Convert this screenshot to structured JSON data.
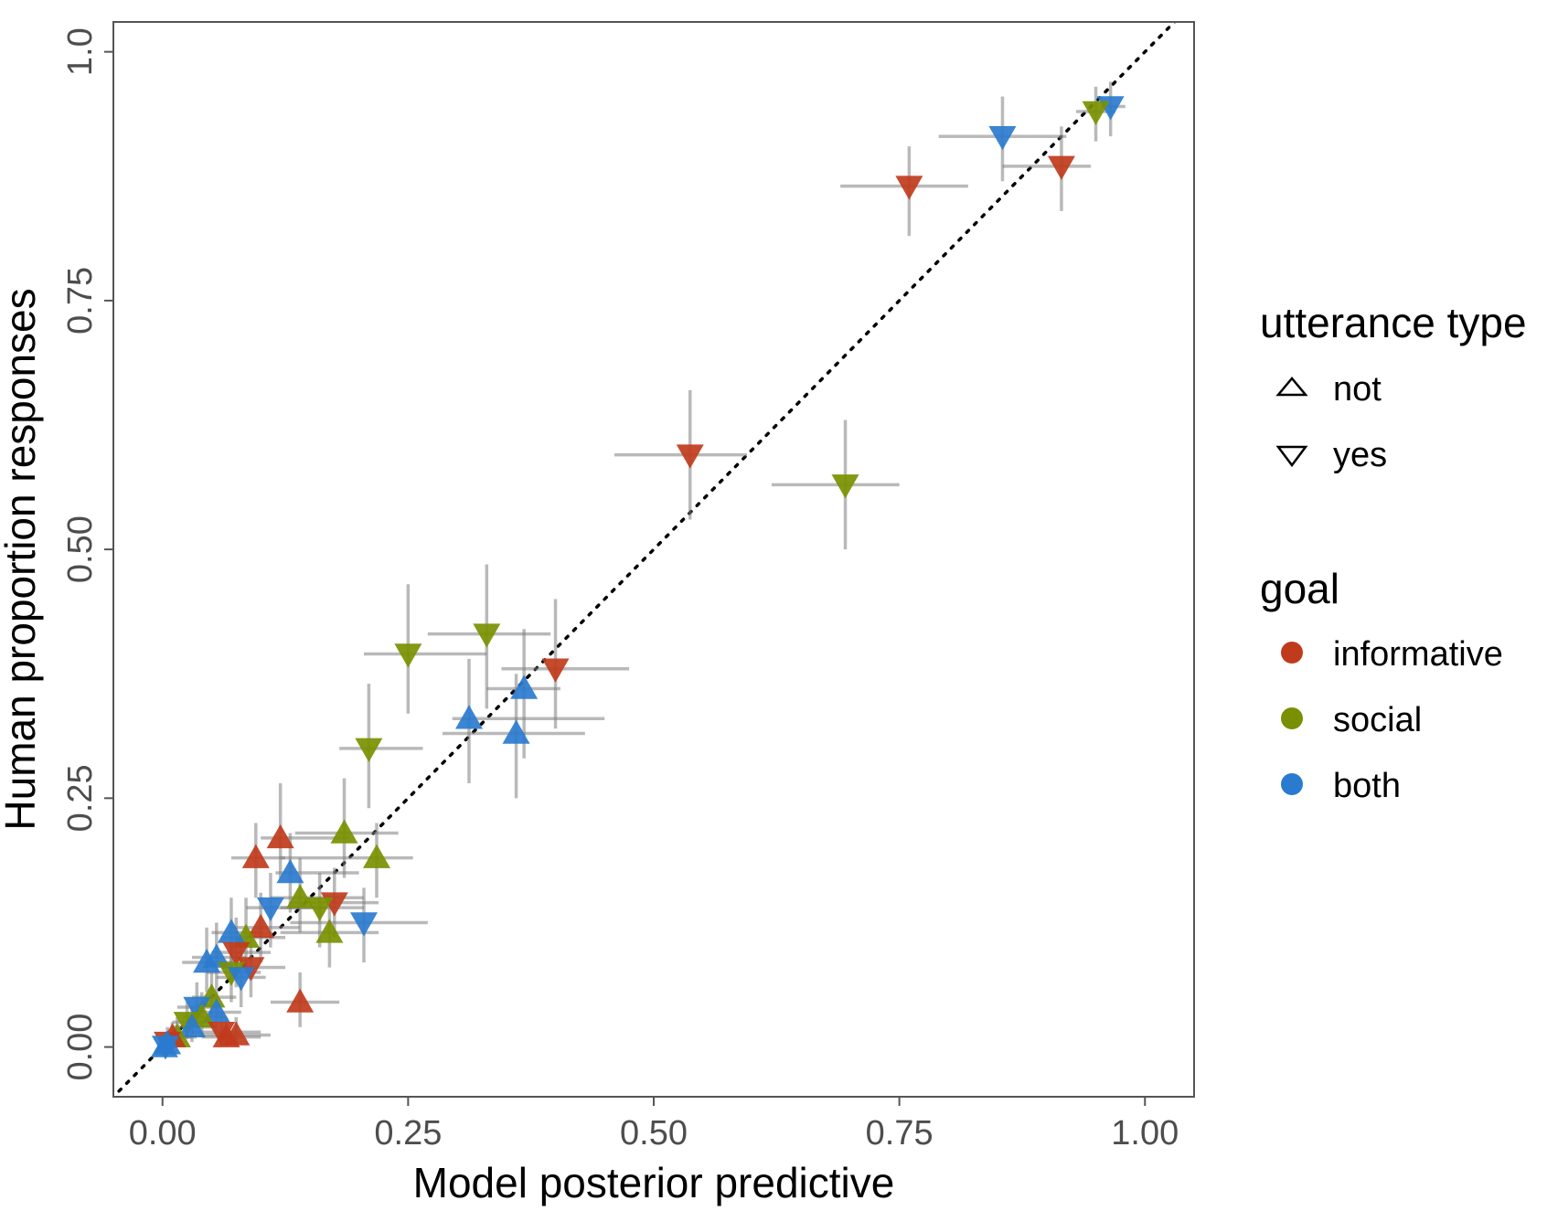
{
  "chart_data": {
    "type": "scatter",
    "title": "",
    "xlabel": "Model posterior predictive",
    "ylabel": "Human proportion responses",
    "xlim": [
      -0.05,
      1.05
    ],
    "ylim": [
      -0.05,
      1.03
    ],
    "xticks": [
      "0.00",
      "0.25",
      "0.50",
      "0.75",
      "1.00"
    ],
    "yticks": [
      "0.00",
      "0.25",
      "0.50",
      "0.75",
      "1.0"
    ],
    "grid": false,
    "reference_line": "y = x (dotted)",
    "legend_placement": "right",
    "colors": {
      "informative": "#c03b1c",
      "social": "#7a9000",
      "both": "#2a7bcf"
    },
    "legends": {
      "shape": {
        "title": "utterance type",
        "items": [
          {
            "label": "not",
            "shape": "triangle-up"
          },
          {
            "label": "yes",
            "shape": "triangle-down"
          }
        ]
      },
      "color": {
        "title": "goal",
        "items": [
          {
            "label": "informative",
            "key": "informative"
          },
          {
            "label": "social",
            "key": "social"
          },
          {
            "label": "both",
            "key": "both"
          }
        ]
      }
    },
    "points": [
      {
        "x": 0.965,
        "y": 0.945,
        "xerr": [
          0.955,
          0.98
        ],
        "yerr": [
          0.915,
          0.97
        ],
        "goal": "both",
        "utt": "yes"
      },
      {
        "x": 0.95,
        "y": 0.94,
        "xerr": [
          0.93,
          0.97
        ],
        "yerr": [
          0.91,
          0.965
        ],
        "goal": "social",
        "utt": "yes"
      },
      {
        "x": 0.855,
        "y": 0.915,
        "xerr": [
          0.79,
          0.92
        ],
        "yerr": [
          0.87,
          0.955
        ],
        "goal": "both",
        "utt": "yes"
      },
      {
        "x": 0.915,
        "y": 0.885,
        "xerr": [
          0.855,
          0.945
        ],
        "yerr": [
          0.84,
          0.925
        ],
        "goal": "informative",
        "utt": "yes"
      },
      {
        "x": 0.76,
        "y": 0.865,
        "xerr": [
          0.69,
          0.82
        ],
        "yerr": [
          0.815,
          0.905
        ],
        "goal": "informative",
        "utt": "yes"
      },
      {
        "x": 0.537,
        "y": 0.595,
        "xerr": [
          0.46,
          0.595
        ],
        "yerr": [
          0.53,
          0.66
        ],
        "goal": "informative",
        "utt": "yes"
      },
      {
        "x": 0.695,
        "y": 0.565,
        "xerr": [
          0.62,
          0.75
        ],
        "yerr": [
          0.5,
          0.63
        ],
        "goal": "social",
        "utt": "yes"
      },
      {
        "x": 0.33,
        "y": 0.415,
        "xerr": [
          0.27,
          0.395
        ],
        "yerr": [
          0.34,
          0.485
        ],
        "goal": "social",
        "utt": "yes"
      },
      {
        "x": 0.25,
        "y": 0.395,
        "xerr": [
          0.205,
          0.33
        ],
        "yerr": [
          0.335,
          0.465
        ],
        "goal": "social",
        "utt": "yes"
      },
      {
        "x": 0.4,
        "y": 0.38,
        "xerr": [
          0.345,
          0.475
        ],
        "yerr": [
          0.32,
          0.45
        ],
        "goal": "informative",
        "utt": "yes"
      },
      {
        "x": 0.368,
        "y": 0.36,
        "xerr": [
          0.33,
          0.405
        ],
        "yerr": [
          0.29,
          0.42
        ],
        "goal": "both",
        "utt": "not"
      },
      {
        "x": 0.312,
        "y": 0.33,
        "xerr": [
          0.295,
          0.45
        ],
        "yerr": [
          0.265,
          0.39
        ],
        "goal": "both",
        "utt": "not"
      },
      {
        "x": 0.36,
        "y": 0.315,
        "xerr": [
          0.285,
          0.43
        ],
        "yerr": [
          0.25,
          0.375
        ],
        "goal": "both",
        "utt": "not"
      },
      {
        "x": 0.21,
        "y": 0.3,
        "xerr": [
          0.18,
          0.265
        ],
        "yerr": [
          0.24,
          0.365
        ],
        "goal": "social",
        "utt": "yes"
      },
      {
        "x": 0.12,
        "y": 0.21,
        "xerr": [
          0.1,
          0.19
        ],
        "yerr": [
          0.17,
          0.265
        ],
        "goal": "informative",
        "utt": "not"
      },
      {
        "x": 0.185,
        "y": 0.215,
        "xerr": [
          0.135,
          0.24
        ],
        "yerr": [
          0.17,
          0.27
        ],
        "goal": "social",
        "utt": "not"
      },
      {
        "x": 0.095,
        "y": 0.19,
        "xerr": [
          0.07,
          0.125
        ],
        "yerr": [
          0.15,
          0.225
        ],
        "goal": "informative",
        "utt": "not"
      },
      {
        "x": 0.218,
        "y": 0.19,
        "xerr": [
          0.12,
          0.255
        ],
        "yerr": [
          0.15,
          0.225
        ],
        "goal": "social",
        "utt": "not"
      },
      {
        "x": 0.13,
        "y": 0.175,
        "xerr": [
          0.115,
          0.2
        ],
        "yerr": [
          0.135,
          0.215
        ],
        "goal": "both",
        "utt": "not"
      },
      {
        "x": 0.14,
        "y": 0.15,
        "xerr": [
          0.11,
          0.205
        ],
        "yerr": [
          0.115,
          0.19
        ],
        "goal": "social",
        "utt": "not"
      },
      {
        "x": 0.175,
        "y": 0.145,
        "xerr": [
          0.13,
          0.22
        ],
        "yerr": [
          0.11,
          0.18
        ],
        "goal": "informative",
        "utt": "yes"
      },
      {
        "x": 0.16,
        "y": 0.14,
        "xerr": [
          0.12,
          0.205
        ],
        "yerr": [
          0.1,
          0.175
        ],
        "goal": "social",
        "utt": "yes"
      },
      {
        "x": 0.11,
        "y": 0.14,
        "xerr": [
          0.085,
          0.165
        ],
        "yerr": [
          0.1,
          0.175
        ],
        "goal": "both",
        "utt": "yes"
      },
      {
        "x": 0.205,
        "y": 0.125,
        "xerr": [
          0.13,
          0.27
        ],
        "yerr": [
          0.085,
          0.16
        ],
        "goal": "both",
        "utt": "yes"
      },
      {
        "x": 0.1,
        "y": 0.12,
        "xerr": [
          0.07,
          0.14
        ],
        "yerr": [
          0.085,
          0.155
        ],
        "goal": "informative",
        "utt": "not"
      },
      {
        "x": 0.085,
        "y": 0.11,
        "xerr": [
          0.06,
          0.125
        ],
        "yerr": [
          0.075,
          0.15
        ],
        "goal": "social",
        "utt": "not"
      },
      {
        "x": 0.17,
        "y": 0.115,
        "xerr": [
          0.12,
          0.22
        ],
        "yerr": [
          0.08,
          0.15
        ],
        "goal": "social",
        "utt": "not"
      },
      {
        "x": 0.07,
        "y": 0.115,
        "xerr": [
          0.05,
          0.1
        ],
        "yerr": [
          0.08,
          0.15
        ],
        "goal": "both",
        "utt": "not"
      },
      {
        "x": 0.075,
        "y": 0.095,
        "xerr": [
          0.05,
          0.11
        ],
        "yerr": [
          0.06,
          0.13
        ],
        "goal": "informative",
        "utt": "yes"
      },
      {
        "x": 0.055,
        "y": 0.09,
        "xerr": [
          0.03,
          0.085
        ],
        "yerr": [
          0.06,
          0.125
        ],
        "goal": "both",
        "utt": "not"
      },
      {
        "x": 0.045,
        "y": 0.085,
        "xerr": [
          0.02,
          0.075
        ],
        "yerr": [
          0.055,
          0.12
        ],
        "goal": "both",
        "utt": "not"
      },
      {
        "x": 0.09,
        "y": 0.08,
        "xerr": [
          0.06,
          0.125
        ],
        "yerr": [
          0.05,
          0.11
        ],
        "goal": "informative",
        "utt": "yes"
      },
      {
        "x": 0.07,
        "y": 0.075,
        "xerr": [
          0.045,
          0.1
        ],
        "yerr": [
          0.045,
          0.105
        ],
        "goal": "social",
        "utt": "yes"
      },
      {
        "x": 0.08,
        "y": 0.07,
        "xerr": [
          0.055,
          0.105
        ],
        "yerr": [
          0.04,
          0.1
        ],
        "goal": "both",
        "utt": "yes"
      },
      {
        "x": 0.14,
        "y": 0.045,
        "xerr": [
          0.11,
          0.18
        ],
        "yerr": [
          0.02,
          0.075
        ],
        "goal": "informative",
        "utt": "not"
      },
      {
        "x": 0.05,
        "y": 0.05,
        "xerr": [
          0.03,
          0.075
        ],
        "yerr": [
          0.03,
          0.075
        ],
        "goal": "social",
        "utt": "not"
      },
      {
        "x": 0.035,
        "y": 0.04,
        "xerr": [
          0.015,
          0.06
        ],
        "yerr": [
          0.02,
          0.065
        ],
        "goal": "both",
        "utt": "yes"
      },
      {
        "x": 0.055,
        "y": 0.035,
        "xerr": [
          0.03,
          0.08
        ],
        "yerr": [
          0.015,
          0.06
        ],
        "goal": "both",
        "utt": "not"
      },
      {
        "x": 0.04,
        "y": 0.03,
        "xerr": [
          0.02,
          0.065
        ],
        "yerr": [
          0.01,
          0.055
        ],
        "goal": "social",
        "utt": "not"
      },
      {
        "x": 0.025,
        "y": 0.025,
        "xerr": [
          0.01,
          0.05
        ],
        "yerr": [
          0.008,
          0.045
        ],
        "goal": "social",
        "utt": "yes"
      },
      {
        "x": 0.03,
        "y": 0.02,
        "xerr": [
          0.01,
          0.055
        ],
        "yerr": [
          0.005,
          0.04
        ],
        "goal": "both",
        "utt": "not"
      },
      {
        "x": 0.06,
        "y": 0.015,
        "xerr": [
          0.03,
          0.1
        ],
        "yerr": [
          0.0,
          0.035
        ],
        "goal": "informative",
        "utt": "yes"
      },
      {
        "x": 0.075,
        "y": 0.012,
        "xerr": [
          0.04,
          0.11
        ],
        "yerr": [
          0.0,
          0.03
        ],
        "goal": "informative",
        "utt": "not"
      },
      {
        "x": 0.065,
        "y": 0.01,
        "xerr": [
          0.04,
          0.1
        ],
        "yerr": [
          0.0,
          0.03
        ],
        "goal": "informative",
        "utt": "not"
      },
      {
        "x": 0.015,
        "y": 0.01,
        "xerr": [
          0.0,
          0.035
        ],
        "yerr": [
          0.0,
          0.03
        ],
        "goal": "social",
        "utt": "not"
      },
      {
        "x": 0.01,
        "y": 0.01,
        "xerr": [
          0.0,
          0.03
        ],
        "yerr": [
          0.0,
          0.025
        ],
        "goal": "informative",
        "utt": "not"
      },
      {
        "x": 0.005,
        "y": 0.005,
        "xerr": [
          0.0,
          0.02
        ],
        "yerr": [
          0.0,
          0.02
        ],
        "goal": "informative",
        "utt": "yes"
      },
      {
        "x": 0.005,
        "y": 0.003,
        "xerr": [
          0.0,
          0.02
        ],
        "yerr": [
          0.0,
          0.015
        ],
        "goal": "both",
        "utt": "not"
      },
      {
        "x": 0.003,
        "y": 0.001,
        "xerr": [
          0.0,
          0.015
        ],
        "yerr": [
          0.0,
          0.01
        ],
        "goal": "both",
        "utt": "yes"
      },
      {
        "x": 0.002,
        "y": 0.0,
        "xerr": [
          0.0,
          0.012
        ],
        "yerr": [
          0.0,
          0.008
        ],
        "goal": "both",
        "utt": "not"
      }
    ]
  }
}
